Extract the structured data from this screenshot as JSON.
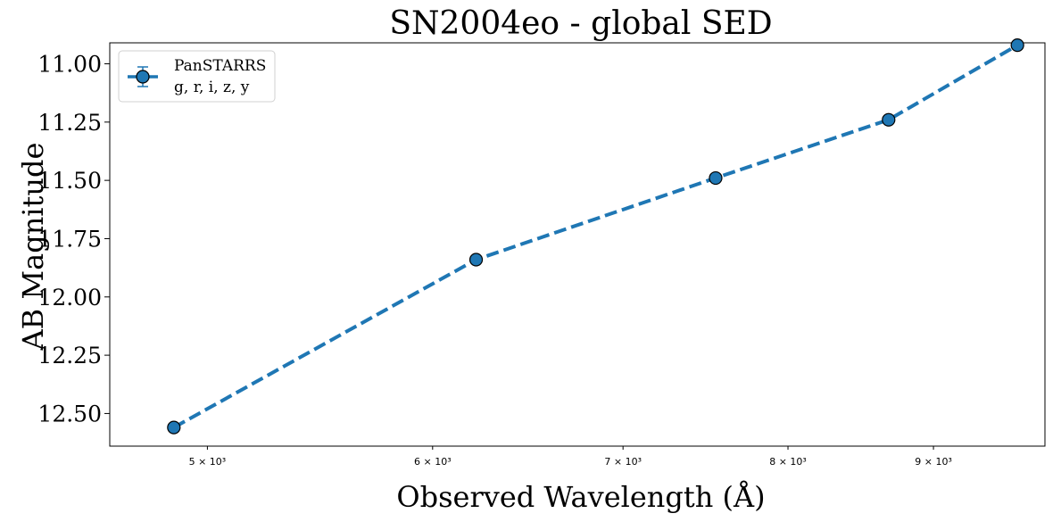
{
  "chart_data": {
    "type": "line",
    "title": "SN2004eo - global SED",
    "xlabel": "Observed Wavelength (Å)",
    "ylabel": "AB Magnitude",
    "xscale": "log",
    "y_inverted": true,
    "xlim": [
      4620,
      9850
    ],
    "ylim": [
      11.09,
      12.64
    ],
    "y_plot_range": [
      10.91,
      12.64
    ],
    "x_ticks": [
      {
        "value": 5000,
        "label": "5 × 10³"
      },
      {
        "value": 6000,
        "label": "6 × 10³"
      },
      {
        "value": 7000,
        "label": "7 × 10³"
      },
      {
        "value": 8000,
        "label": "8 × 10³"
      },
      {
        "value": 9000,
        "label": "9 × 10³"
      }
    ],
    "y_ticks": [
      {
        "value": 11.0,
        "label": "11.00"
      },
      {
        "value": 11.25,
        "label": "11.25"
      },
      {
        "value": 11.5,
        "label": "11.50"
      },
      {
        "value": 11.75,
        "label": "11.75"
      },
      {
        "value": 12.0,
        "label": "12.00"
      },
      {
        "value": 12.25,
        "label": "12.25"
      },
      {
        "value": 12.5,
        "label": "12.50"
      }
    ],
    "series": [
      {
        "name": "PanSTARRS\ng, r, i, z, y",
        "color": "#1f77b4",
        "marker": "circle",
        "linestyle": "dashed",
        "x": [
          4866,
          6215,
          7545,
          8679,
          9633
        ],
        "y": [
          12.56,
          11.84,
          11.49,
          11.24,
          10.92
        ]
      }
    ],
    "legend": {
      "position": "top-left",
      "lines": [
        "PanSTARRS",
        "g, r, i, z, y"
      ]
    },
    "grid": false
  }
}
